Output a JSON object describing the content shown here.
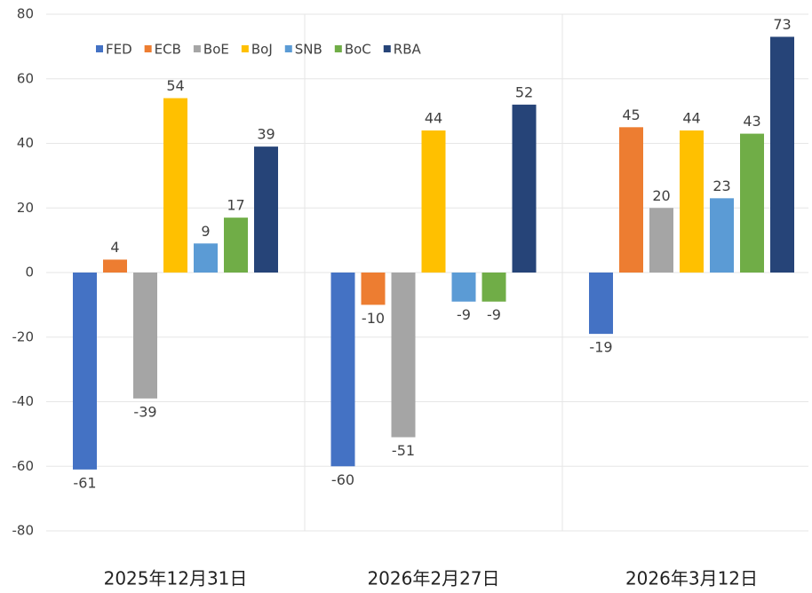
{
  "chart_data": {
    "type": "bar",
    "categories": [
      "2025年12月31日",
      "2026年2月27日",
      "2026年3月12日"
    ],
    "series": [
      {
        "name": "FED",
        "color": "#4472c4",
        "values": [
          -61,
          -60,
          -19
        ]
      },
      {
        "name": "ECB",
        "color": "#ed7d31",
        "values": [
          4,
          -10,
          45
        ]
      },
      {
        "name": "BoE",
        "color": "#a5a5a5",
        "values": [
          -39,
          -51,
          20
        ]
      },
      {
        "name": "BoJ",
        "color": "#ffc000",
        "values": [
          54,
          44,
          44
        ]
      },
      {
        "name": "SNB",
        "color": "#5b9bd5",
        "values": [
          9,
          -9,
          23
        ]
      },
      {
        "name": "BoC",
        "color": "#70ad47",
        "values": [
          17,
          -9,
          43
        ]
      },
      {
        "name": "RBA",
        "color": "#264478",
        "values": [
          39,
          52,
          73
        ]
      }
    ],
    "ylim": [
      -80,
      80
    ],
    "yticks": [
      -80,
      -60,
      -40,
      -20,
      0,
      20,
      40,
      60,
      80
    ],
    "grid": true,
    "legend": "top"
  }
}
